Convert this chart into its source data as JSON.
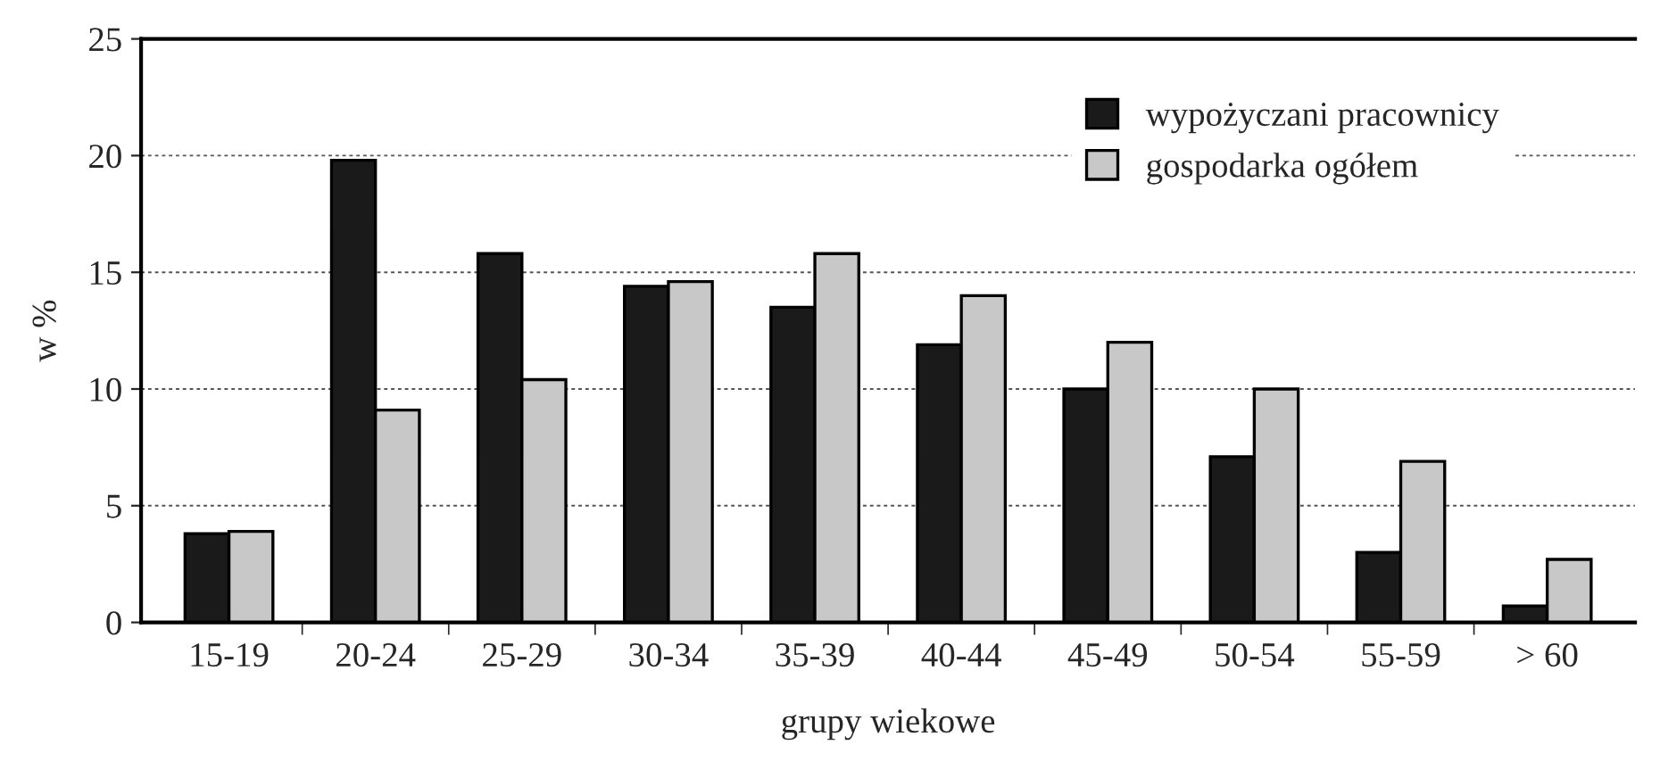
{
  "chart_data": {
    "type": "bar",
    "xlabel": "grupy wiekowe",
    "ylabel": "w %",
    "categories": [
      "15-19",
      "20-24",
      "25-29",
      "30-34",
      "35-39",
      "40-44",
      "45-49",
      "50-54",
      "55-59",
      "> 60"
    ],
    "series": [
      {
        "name": "wypożyczani pracownicy",
        "color": "#1a1a1a",
        "values": [
          3.8,
          19.8,
          15.8,
          14.4,
          13.5,
          11.9,
          10.0,
          7.1,
          3.0,
          0.7
        ]
      },
      {
        "name": "gospodarka ogółem",
        "color": "#c8c8c8",
        "values": [
          3.9,
          9.1,
          10.4,
          14.6,
          15.8,
          14.0,
          12.0,
          10.0,
          6.9,
          2.7
        ]
      }
    ],
    "ylim": [
      0,
      25
    ],
    "yticks": [
      0,
      5,
      10,
      15,
      20,
      25
    ],
    "grid": "y",
    "legend": "top right"
  }
}
